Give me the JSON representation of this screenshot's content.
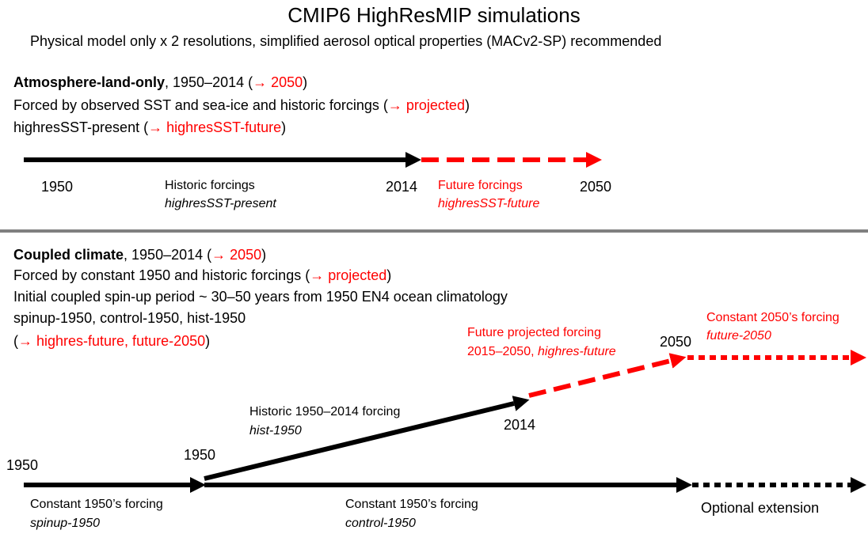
{
  "title": "CMIP6 HighResMIP simulations",
  "subtitle": "Physical model only x 2 resolutions, simplified aerosol optical properties (MACv2-SP) recommended",
  "atmosphere": {
    "heading": [
      "Atmosphere-land-only",
      ", 1950–2014 (",
      "→ 2050",
      ")"
    ],
    "forcing": [
      "Forced by observed SST and sea-ice and historic forcings (",
      "→ projected",
      ")"
    ],
    "experiments": [
      "highresSST-present (",
      "→ highresSST-future",
      ")"
    ],
    "timeline": {
      "start": "1950",
      "mid": "2014",
      "end": "2050",
      "historic_label": "Historic forcings",
      "historic_exp": "highresSST-present",
      "future_label": "Future forcings",
      "future_exp": "highresSST-future"
    }
  },
  "coupled": {
    "heading": [
      "Coupled climate",
      ", 1950–2014 (",
      "→ 2050",
      ")"
    ],
    "forcing": [
      "Forced by constant 1950 and historic forcings (",
      "→ projected",
      ")"
    ],
    "spinup": "Initial coupled spin-up period ~ 30–50 years from 1950 EN4 ocean climatology",
    "experiments": "spinup-1950, control-1950, hist-1950",
    "future_experiments": [
      "(",
      "→ highres-future, future-2050",
      ")"
    ],
    "diagram": {
      "start": "1950",
      "branch": "1950",
      "hist_end": "2014",
      "future_end": "2050",
      "historic_label": "Historic 1950–2014 forcing",
      "historic_exp": "hist-1950",
      "future_label": "Future projected forcing",
      "future_period": "2015–2050, ",
      "future_exp": "highres-future",
      "constant2050_label": "Constant 2050’s forcing",
      "constant2050_exp": "future-2050",
      "spinup_label": "Constant 1950’s forcing",
      "spinup_exp": "spinup-1950",
      "control_label": "Constant 1950’s forcing",
      "control_exp": "control-1950",
      "extension": "Optional extension"
    }
  }
}
